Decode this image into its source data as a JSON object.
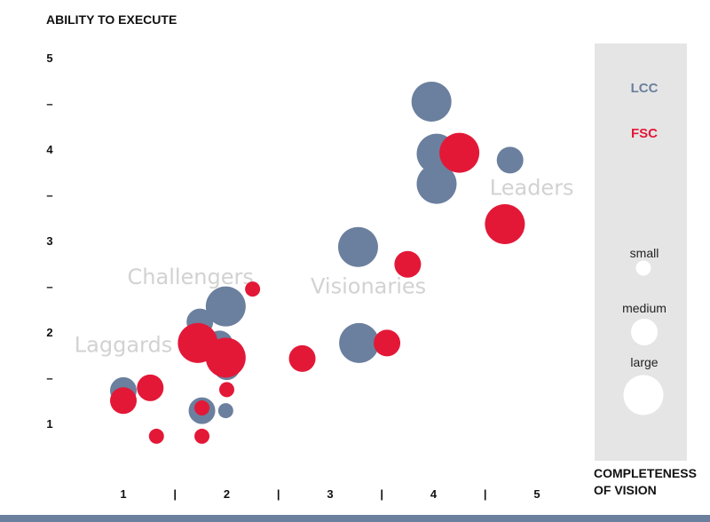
{
  "chart_data": {
    "type": "scatter",
    "y_axis_title": "ABILITY TO EXECUTE",
    "x_axis_title_lines": [
      "COMPLETENESS",
      "OF VISION"
    ],
    "x_ticks": [
      {
        "value": 1,
        "label": "1"
      },
      {
        "value": 1.5,
        "label": "|"
      },
      {
        "value": 2,
        "label": "2"
      },
      {
        "value": 2.5,
        "label": "|"
      },
      {
        "value": 3,
        "label": "3"
      },
      {
        "value": 3.5,
        "label": "|"
      },
      {
        "value": 4,
        "label": "4"
      },
      {
        "value": 4.5,
        "label": "|"
      },
      {
        "value": 5,
        "label": "5"
      }
    ],
    "y_ticks": [
      {
        "value": 5,
        "label": "5"
      },
      {
        "value": 4.5,
        "label": "–"
      },
      {
        "value": 4,
        "label": "4"
      },
      {
        "value": 3.5,
        "label": "–"
      },
      {
        "value": 3,
        "label": "3"
      },
      {
        "value": 2.5,
        "label": "–"
      },
      {
        "value": 2,
        "label": "2"
      },
      {
        "value": 1.5,
        "label": "–"
      },
      {
        "value": 1,
        "label": "1"
      }
    ],
    "xlim": [
      0.85,
      5.25
    ],
    "ylim": [
      0.55,
      5.15
    ],
    "zones": [
      {
        "label": "Leaders",
        "x": 4.95,
        "y": 3.58
      },
      {
        "label": "Challengers",
        "x": 1.65,
        "y": 2.6
      },
      {
        "label": "Visionaries",
        "x": 3.37,
        "y": 2.5
      },
      {
        "label": "Laggards",
        "x": 1.0,
        "y": 1.86
      }
    ],
    "series": [
      {
        "name": "LCC",
        "color": "#6b7f9e",
        "points": [
          {
            "x": 3.98,
            "y": 4.52,
            "size": "large"
          },
          {
            "x": 4.03,
            "y": 3.95,
            "size": "large"
          },
          {
            "x": 4.03,
            "y": 3.62,
            "size": "large"
          },
          {
            "x": 4.74,
            "y": 3.88,
            "size": "medium"
          },
          {
            "x": 3.27,
            "y": 2.93,
            "size": "large"
          },
          {
            "x": 3.28,
            "y": 1.88,
            "size": "large"
          },
          {
            "x": 1.99,
            "y": 2.28,
            "size": "large"
          },
          {
            "x": 1.74,
            "y": 2.11,
            "size": "medium"
          },
          {
            "x": 1.93,
            "y": 1.87,
            "size": "medium"
          },
          {
            "x": 2.0,
            "y": 1.62,
            "size": "medium"
          },
          {
            "x": 1.0,
            "y": 1.36,
            "size": "medium"
          },
          {
            "x": 1.76,
            "y": 1.14,
            "size": "medium"
          },
          {
            "x": 1.99,
            "y": 1.14,
            "size": "small"
          }
        ]
      },
      {
        "name": "FSC",
        "color": "#e31837",
        "points": [
          {
            "x": 4.25,
            "y": 3.96,
            "size": "large"
          },
          {
            "x": 4.69,
            "y": 3.18,
            "size": "large"
          },
          {
            "x": 3.75,
            "y": 2.74,
            "size": "medium"
          },
          {
            "x": 2.25,
            "y": 2.47,
            "size": "small"
          },
          {
            "x": 1.72,
            "y": 1.88,
            "size": "large"
          },
          {
            "x": 1.99,
            "y": 1.72,
            "size": "large"
          },
          {
            "x": 3.55,
            "y": 1.88,
            "size": "medium"
          },
          {
            "x": 2.73,
            "y": 1.71,
            "size": "medium"
          },
          {
            "x": 1.26,
            "y": 1.39,
            "size": "medium"
          },
          {
            "x": 1.0,
            "y": 1.25,
            "size": "medium"
          },
          {
            "x": 2.0,
            "y": 1.37,
            "size": "small"
          },
          {
            "x": 1.76,
            "y": 1.17,
            "size": "small"
          },
          {
            "x": 1.32,
            "y": 0.86,
            "size": "small"
          },
          {
            "x": 1.76,
            "y": 0.86,
            "size": "small"
          }
        ]
      }
    ],
    "legend": {
      "placement": "right",
      "background": "#e5e5e5",
      "series_labels": [
        {
          "label": "LCC",
          "color": "#6b7f9e"
        },
        {
          "label": "FSC",
          "color": "#e31837"
        }
      ],
      "size_labels": [
        {
          "label": "small",
          "size": "small"
        },
        {
          "label": "medium",
          "size": "medium"
        },
        {
          "label": "large",
          "size": "large"
        }
      ]
    },
    "footer_color": "#6b7f9e",
    "grid": false
  }
}
